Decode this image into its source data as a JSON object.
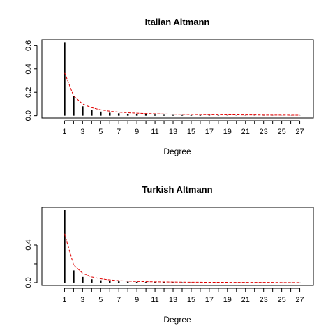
{
  "chart_data": [
    {
      "type": "bar",
      "title": "Italian Altmann",
      "xlabel": "Degree",
      "ylabel": "",
      "x": [
        1,
        2,
        3,
        4,
        5,
        6,
        7,
        8,
        9,
        10,
        11,
        12,
        13,
        14,
        15,
        16,
        17,
        18,
        19,
        20,
        21,
        22,
        23,
        24,
        25,
        26,
        27
      ],
      "xlim": [
        -1.5,
        28.5
      ],
      "x_tick_labels": [
        "1",
        "3",
        "5",
        "7",
        "9",
        "11",
        "13",
        "15",
        "17",
        "19",
        "21",
        "23",
        "25",
        "27"
      ],
      "ylim": [
        -0.02,
        0.65
      ],
      "y_ticks": [
        0.0,
        0.2,
        0.4,
        0.6
      ],
      "y_tick_labels": [
        "0.0",
        "0.2",
        "0.4",
        "0.6"
      ],
      "series": [
        {
          "kind": "bars",
          "color": "#000000",
          "values": [
            0.63,
            0.17,
            0.08,
            0.05,
            0.035,
            0.025,
            0.02,
            0.015,
            0.012,
            0.01,
            0.008,
            0.007,
            0.006,
            0.005,
            0.004,
            0.004,
            0.003,
            0.003,
            0.002,
            0.002,
            0.002,
            0.002,
            0.001,
            0.001,
            0.001,
            0.001,
            0.001
          ]
        },
        {
          "kind": "line",
          "style": "dashed",
          "color": "#e00000",
          "values": [
            0.37,
            0.17,
            0.1,
            0.068,
            0.05,
            0.038,
            0.03,
            0.025,
            0.021,
            0.018,
            0.016,
            0.014,
            0.012,
            0.011,
            0.01,
            0.009,
            0.008,
            0.008,
            0.007,
            0.007,
            0.006,
            0.006,
            0.005,
            0.005,
            0.005,
            0.004,
            0.004
          ]
        }
      ]
    },
    {
      "type": "bar",
      "title": "Turkish Altmann",
      "xlabel": "Degree",
      "ylabel": "",
      "x": [
        1,
        2,
        3,
        4,
        5,
        6,
        7,
        8,
        9,
        10,
        11,
        12,
        13,
        14,
        15,
        16,
        17,
        18,
        19,
        20,
        21,
        22,
        23,
        24,
        25,
        26,
        27
      ],
      "xlim": [
        -1.5,
        28.5
      ],
      "x_tick_labels": [
        "1",
        "3",
        "5",
        "7",
        "9",
        "11",
        "13",
        "15",
        "17",
        "19",
        "21",
        "23",
        "25",
        "27"
      ],
      "ylim": [
        -0.03,
        0.8
      ],
      "y_ticks": [
        0.0,
        0.4
      ],
      "y_tick_labels": [
        "0.0",
        "0.4"
      ],
      "series": [
        {
          "kind": "bars",
          "color": "#000000",
          "values": [
            0.77,
            0.13,
            0.06,
            0.035,
            0.025,
            0.018,
            0.013,
            0.01,
            0.008,
            0.006,
            0.005,
            0.004,
            0.003,
            0.003,
            0.002,
            0.002,
            0.002,
            0.001,
            0.001,
            0.001,
            0.001,
            0.001,
            0.001,
            0.001,
            0.001,
            0.001,
            0.001
          ]
        },
        {
          "kind": "line",
          "style": "dashed",
          "color": "#e00000",
          "values": [
            0.52,
            0.19,
            0.1,
            0.06,
            0.04,
            0.028,
            0.021,
            0.016,
            0.012,
            0.01,
            0.008,
            0.007,
            0.006,
            0.005,
            0.004,
            0.004,
            0.003,
            0.003,
            0.003,
            0.002,
            0.002,
            0.002,
            0.002,
            0.002,
            0.001,
            0.001,
            0.001
          ]
        }
      ]
    }
  ]
}
